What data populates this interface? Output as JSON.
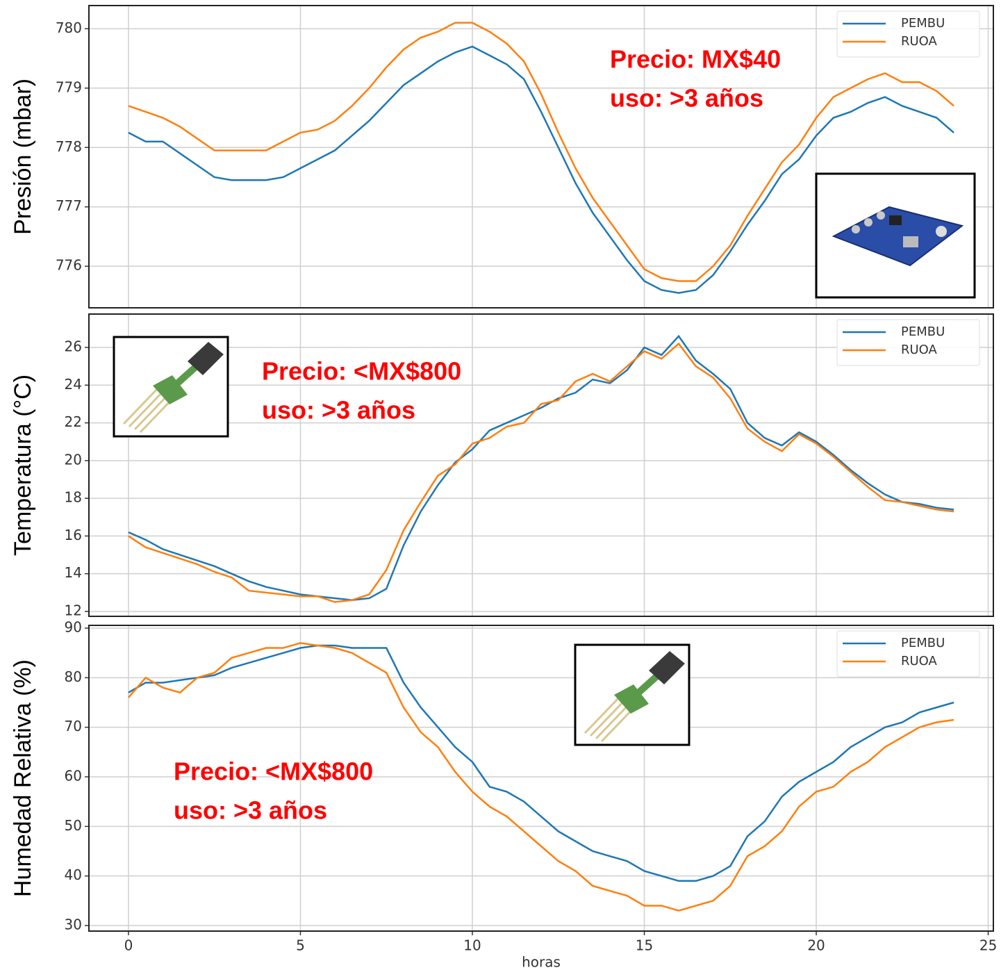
{
  "chart_data": [
    {
      "type": "line",
      "ylabel": "Presión (mbar)",
      "annotations": [
        "Precio: MX$40",
        "uso: >3 años"
      ],
      "x": [
        0,
        0.5,
        1,
        1.5,
        2,
        2.5,
        3,
        3.5,
        4,
        4.5,
        5,
        5.5,
        6,
        6.5,
        7,
        7.5,
        8,
        8.5,
        9,
        9.5,
        10,
        10.5,
        11,
        11.5,
        12,
        12.5,
        13,
        13.5,
        14,
        14.5,
        15,
        15.5,
        16,
        16.5,
        17,
        17.5,
        18,
        18.5,
        19,
        19.5,
        20,
        20.5,
        21,
        21.5,
        22,
        22.5,
        23,
        23.5,
        24
      ],
      "series": [
        {
          "name": "PEMBU",
          "color": "#1f77b4",
          "values": [
            778.25,
            778.1,
            778.1,
            777.9,
            777.7,
            777.5,
            777.45,
            777.45,
            777.45,
            777.5,
            777.65,
            777.8,
            777.95,
            778.2,
            778.45,
            778.75,
            779.05,
            779.25,
            779.45,
            779.6,
            779.7,
            779.55,
            779.4,
            779.15,
            778.6,
            778.0,
            777.4,
            776.9,
            776.5,
            776.1,
            775.75,
            775.6,
            775.55,
            775.6,
            775.85,
            776.25,
            776.7,
            777.1,
            777.55,
            777.8,
            778.2,
            778.5,
            778.6,
            778.75,
            778.85,
            778.7,
            778.6,
            778.5,
            778.25
          ]
        },
        {
          "name": "RUOA",
          "color": "#ff7f0e",
          "values": [
            778.7,
            778.6,
            778.5,
            778.35,
            778.15,
            777.95,
            777.95,
            777.95,
            777.95,
            778.1,
            778.25,
            778.3,
            778.45,
            778.7,
            779.0,
            779.35,
            779.65,
            779.85,
            779.95,
            780.1,
            780.1,
            779.95,
            779.75,
            779.45,
            778.9,
            778.25,
            777.65,
            777.15,
            776.75,
            776.35,
            775.95,
            775.8,
            775.75,
            775.75,
            776.0,
            776.35,
            776.85,
            777.3,
            777.75,
            778.05,
            778.5,
            778.85,
            779.0,
            779.15,
            779.25,
            779.1,
            779.1,
            778.95,
            778.7
          ]
        }
      ],
      "xlim": [
        -1.15,
        25.15
      ],
      "xticks": [
        0,
        5,
        10,
        15,
        20,
        25
      ],
      "ylim": [
        775.3,
        780.39
      ],
      "yticks": [
        776,
        777,
        778,
        779,
        780
      ],
      "grid": true,
      "legend": "upper right"
    },
    {
      "type": "line",
      "ylabel": "Temperatura (°C)",
      "annotations": [
        "Precio: <MX$800",
        "uso: >3 años"
      ],
      "x": [
        0,
        0.5,
        1,
        1.5,
        2,
        2.5,
        3,
        3.5,
        4,
        4.5,
        5,
        5.5,
        6,
        6.5,
        7,
        7.5,
        8,
        8.5,
        9,
        9.5,
        10,
        10.5,
        11,
        11.5,
        12,
        12.5,
        13,
        13.5,
        14,
        14.5,
        15,
        15.5,
        16,
        16.5,
        17,
        17.5,
        18,
        18.5,
        19,
        19.5,
        20,
        20.5,
        21,
        21.5,
        22,
        22.5,
        23,
        23.5,
        24
      ],
      "series": [
        {
          "name": "PEMBU",
          "color": "#1f77b4",
          "values": [
            16.2,
            15.8,
            15.3,
            15.0,
            14.7,
            14.4,
            14.0,
            13.6,
            13.3,
            13.1,
            12.9,
            12.8,
            12.7,
            12.6,
            12.7,
            13.2,
            15.5,
            17.3,
            18.7,
            19.9,
            20.6,
            21.6,
            22.0,
            22.4,
            22.8,
            23.3,
            23.6,
            24.3,
            24.1,
            24.8,
            26.0,
            25.6,
            26.6,
            25.3,
            24.6,
            23.8,
            22.0,
            21.2,
            20.8,
            21.5,
            21.0,
            20.3,
            19.5,
            18.8,
            18.2,
            17.8,
            17.7,
            17.5,
            17.4
          ]
        },
        {
          "name": "RUOA",
          "color": "#ff7f0e",
          "values": [
            16.0,
            15.4,
            15.1,
            14.8,
            14.5,
            14.1,
            13.8,
            13.1,
            13.0,
            12.9,
            12.8,
            12.8,
            12.5,
            12.6,
            12.9,
            14.2,
            16.3,
            17.8,
            19.2,
            19.8,
            20.9,
            21.2,
            21.8,
            22.0,
            23.0,
            23.2,
            24.2,
            24.6,
            24.2,
            25.0,
            25.8,
            25.4,
            26.2,
            25.0,
            24.4,
            23.3,
            21.7,
            21.0,
            20.5,
            21.4,
            20.9,
            20.2,
            19.4,
            18.6,
            17.9,
            17.8,
            17.6,
            17.4,
            17.3
          ]
        }
      ],
      "xlim": [
        -1.15,
        25.15
      ],
      "xticks": [
        0,
        5,
        10,
        15,
        20,
        25
      ],
      "ylim": [
        11.74,
        27.77
      ],
      "yticks": [
        12,
        14,
        16,
        18,
        20,
        22,
        24,
        26
      ],
      "grid": true,
      "legend": "upper right"
    },
    {
      "type": "line",
      "ylabel": "Humedad Relativa (%)",
      "xlabel": "horas",
      "annotations": [
        "Precio: <MX$800",
        "uso: >3 años"
      ],
      "x": [
        0,
        0.5,
        1,
        1.5,
        2,
        2.5,
        3,
        3.5,
        4,
        4.5,
        5,
        5.5,
        6,
        6.5,
        7,
        7.5,
        8,
        8.5,
        9,
        9.5,
        10,
        10.5,
        11,
        11.5,
        12,
        12.5,
        13,
        13.5,
        14,
        14.5,
        15,
        15.5,
        16,
        16.5,
        17,
        17.5,
        18,
        18.5,
        19,
        19.5,
        20,
        20.5,
        21,
        21.5,
        22,
        22.5,
        23,
        23.5,
        24
      ],
      "series": [
        {
          "name": "PEMBU",
          "color": "#1f77b4",
          "values": [
            77,
            79,
            79,
            79.5,
            80,
            80.5,
            82,
            83,
            84,
            85,
            86,
            86.5,
            86.5,
            86,
            86,
            86,
            79,
            74,
            70,
            66,
            63,
            58,
            57,
            55,
            52,
            49,
            47,
            45,
            44,
            43,
            41,
            40,
            39,
            39,
            40,
            42,
            48,
            51,
            56,
            59,
            61,
            63,
            66,
            68,
            70,
            71,
            73,
            74,
            75
          ]
        },
        {
          "name": "RUOA",
          "color": "#ff7f0e",
          "values": [
            76,
            80,
            78,
            77,
            80,
            81,
            84,
            85,
            86,
            86,
            87,
            86.5,
            86,
            85,
            83,
            81,
            74,
            69,
            66,
            61,
            57,
            54,
            52,
            49,
            46,
            43,
            41,
            38,
            37,
            36,
            34,
            34,
            33,
            34,
            35,
            38,
            44,
            46,
            49,
            54,
            57,
            58,
            61,
            63,
            66,
            68,
            70,
            71,
            71.5
          ]
        }
      ],
      "xlim": [
        -1.15,
        25.15
      ],
      "xticks": [
        0,
        5,
        10,
        15,
        20,
        25
      ],
      "ylim": [
        28.88,
        90.56
      ],
      "yticks": [
        30,
        40,
        50,
        60,
        70,
        80,
        90
      ],
      "grid": true,
      "legend": "upper right"
    }
  ]
}
